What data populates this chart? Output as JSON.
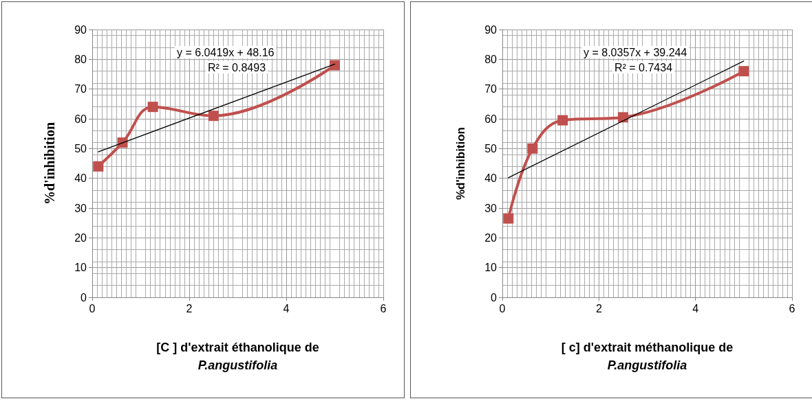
{
  "chart_data": [
    {
      "type": "line",
      "xlabel": "[C ] d'extrait éthanolique de\nP.angustifolia",
      "ylabel": "%d'inhibition",
      "xlim": [
        0,
        6
      ],
      "xticks": [
        0,
        2,
        4,
        6
      ],
      "ylim": [
        0,
        90
      ],
      "yticks": [
        0,
        10,
        20,
        30,
        40,
        50,
        60,
        70,
        80,
        90
      ],
      "grid": true,
      "annotations": [
        "y = 6.0419x + 48.16",
        "R² = 0.8493"
      ],
      "series": [
        {
          "x": [
            0.125,
            0.625,
            1.25,
            2.5,
            5
          ],
          "values": [
            44,
            52,
            64,
            61,
            78
          ],
          "color": "#c0504d",
          "marker": "square"
        },
        {
          "x": [
            0.125,
            5
          ],
          "values": [
            48.9,
            78.4
          ],
          "color": "#000000",
          "marker": "none"
        }
      ]
    },
    {
      "type": "line",
      "xlabel": "[ c] d'extrait méthanolique de\nP.angustifolia",
      "ylabel": "%d'inhibition",
      "xlim": [
        0,
        6
      ],
      "xticks": [
        0,
        2,
        4,
        6
      ],
      "ylim": [
        0,
        90
      ],
      "yticks": [
        0,
        10,
        20,
        30,
        40,
        50,
        60,
        70,
        80,
        90
      ],
      "grid": true,
      "annotations": [
        "y = 8.0357x + 39.244",
        "R² = 0.7434"
      ],
      "series": [
        {
          "x": [
            0.125,
            0.625,
            1.25,
            2.5,
            5
          ],
          "values": [
            26.5,
            50,
            59.5,
            60.5,
            76
          ],
          "color": "#c0504d",
          "marker": "square"
        },
        {
          "x": [
            0.125,
            5
          ],
          "values": [
            40.2,
            79.4
          ],
          "color": "#000000",
          "marker": "none"
        }
      ]
    }
  ]
}
